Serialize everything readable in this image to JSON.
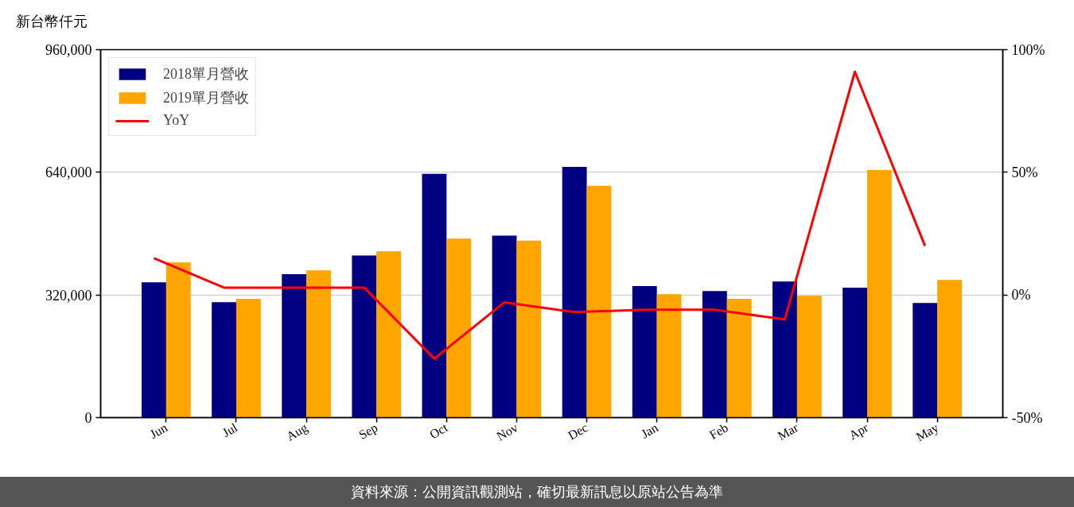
{
  "chart_data": {
    "type": "bar",
    "ylabel": "新台幣仟元",
    "categories": [
      "Jun",
      "Jul",
      "Aug",
      "Sep",
      "Oct",
      "Nov",
      "Dec",
      "Jan",
      "Feb",
      "Mar",
      "Apr",
      "May"
    ],
    "series": [
      {
        "name": "2018單月營收",
        "color": "#000080",
        "values": [
          353000,
          301000,
          374000,
          423000,
          636000,
          475000,
          654000,
          343000,
          330000,
          355000,
          339000,
          299000
        ]
      },
      {
        "name": "2019單月營收",
        "color": "#ffa500",
        "values": [
          405000,
          310000,
          384000,
          434000,
          467000,
          462000,
          605000,
          322000,
          310000,
          318000,
          646000,
          359000
        ]
      },
      {
        "name": "YoY",
        "type": "line",
        "axis": "y2",
        "color": "#ff0000",
        "values": [
          15,
          3,
          3,
          3,
          -26,
          -3,
          -7,
          -6,
          -6,
          -10,
          91,
          20
        ]
      }
    ],
    "ylim": [
      0,
      960000
    ],
    "yticks": [
      0,
      {
        "value": 320000,
        "label": "320,000"
      },
      {
        "value": 640000,
        "label": "640,000"
      },
      {
        "value": 960000,
        "label": "960,000"
      }
    ],
    "y2lim": [
      -50,
      100
    ],
    "y2ticks": [
      {
        "value": -50,
        "label": "-50%"
      },
      {
        "value": 0,
        "label": "0%"
      },
      {
        "value": 50,
        "label": "50%"
      },
      {
        "value": 100,
        "label": "100%"
      }
    ],
    "grid": "y",
    "legend": "top left",
    "line_style": "solid",
    "annotations": [
      "資料來源：公開資訊觀測站，確切最新訊息以原站公告為準"
    ]
  }
}
